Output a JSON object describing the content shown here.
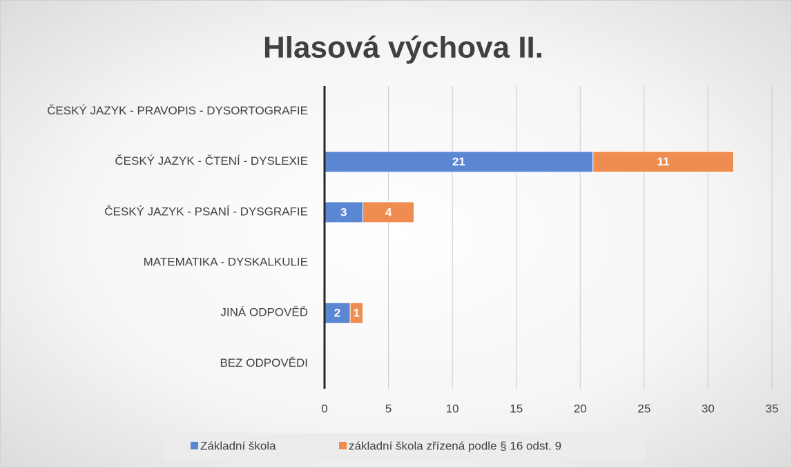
{
  "chart_data": {
    "type": "stacked-barh",
    "title": "Hlasová výchova II.",
    "categories": [
      "ČESKÝ JAZYK - PRAVOPIS - DYSORTOGRAFIE",
      "ČESKÝ JAZYK - ČTENÍ - DYSLEXIE",
      "ČESKÝ JAZYK - PSANÍ - DYSGRAFIE",
      "MATEMATIKA - DYSKALKULIE",
      "JINÁ ODPOVĚĎ",
      "BEZ ODPOVĚDI"
    ],
    "series": [
      {
        "name": "Základní škola",
        "color": "#5b86d1",
        "values": [
          null,
          21,
          3,
          null,
          2,
          null
        ]
      },
      {
        "name": "základní škola zřízená podle § 16 odst. 9",
        "color": "#ef8c4f",
        "values": [
          null,
          11,
          4,
          null,
          1,
          null
        ]
      }
    ],
    "xlim": [
      0,
      35
    ],
    "xticks": [
      0,
      5,
      10,
      15,
      20,
      25,
      30,
      35
    ],
    "grid": true,
    "legend": "bottom"
  }
}
